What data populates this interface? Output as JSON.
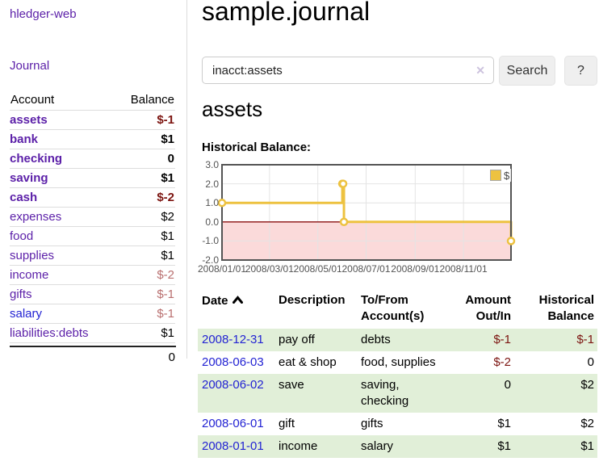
{
  "app": {
    "title": "hledger-web"
  },
  "sidebar": {
    "journal_link": "Journal",
    "accounts_table": {
      "headers": {
        "account": "Account",
        "balance": "Balance"
      },
      "rows": [
        {
          "name": "assets",
          "depth": 1,
          "bold": true,
          "balance": "$-1",
          "tone": "neg-strong"
        },
        {
          "name": "bank",
          "depth": 2,
          "bold": true,
          "balance": "$1",
          "tone": ""
        },
        {
          "name": "checking",
          "depth": 3,
          "bold": true,
          "balance": "0",
          "tone": ""
        },
        {
          "name": "saving",
          "depth": 3,
          "bold": true,
          "balance": "$1",
          "tone": ""
        },
        {
          "name": "cash",
          "depth": 2,
          "bold": true,
          "balance": "$-2",
          "tone": "neg-strong"
        },
        {
          "name": "expenses",
          "depth": 1,
          "bold": false,
          "balance": "$2",
          "tone": ""
        },
        {
          "name": "food",
          "depth": 2,
          "bold": false,
          "balance": "$1",
          "tone": ""
        },
        {
          "name": "supplies",
          "depth": 2,
          "bold": false,
          "balance": "$1",
          "tone": ""
        },
        {
          "name": "income",
          "depth": 1,
          "bold": false,
          "balance": "$-2",
          "tone": "neg-soft"
        },
        {
          "name": "gifts",
          "depth": 2,
          "bold": false,
          "balance": "$-1",
          "tone": "neg-soft"
        },
        {
          "name": "salary",
          "depth": 2,
          "bold": false,
          "balance": "$-1",
          "tone": "neg-soft",
          "unvisited": true
        },
        {
          "name": "liabilities:debts",
          "depth": 1,
          "bold": false,
          "balance": "$1",
          "tone": ""
        }
      ],
      "total": "0"
    }
  },
  "main": {
    "title": "sample.journal",
    "search": {
      "value": "inacct:assets",
      "clear_icon": "✕",
      "button": "Search",
      "help_button": "?"
    },
    "account_heading": "assets",
    "chart_label": "Historical Balance:"
  },
  "chart_data": {
    "type": "line",
    "steps": true,
    "title": "Historical Balance",
    "series": [
      {
        "name": "$",
        "color": "#edc240",
        "points": [
          [
            "2008-01-01",
            1
          ],
          [
            "2008-06-01",
            2
          ],
          [
            "2008-06-02",
            2
          ],
          [
            "2008-06-03",
            0
          ],
          [
            "2008-12-31",
            -1
          ]
        ]
      }
    ],
    "x_range": [
      "2008-01-01",
      "2008-12-31"
    ],
    "x_tick_dates": [
      "2008-01-01",
      "2008-03-01",
      "2008-05-01",
      "2008-07-01",
      "2008-09-01",
      "2008-11-01"
    ],
    "x_tick_labels": [
      "2008/01/01",
      "2008/03/01",
      "2008/05/01",
      "2008/07/01",
      "2008/09/01",
      "2008/11/01"
    ],
    "y_ticks": [
      "3.0",
      "2.0",
      "1.0",
      "0.0",
      "-1.0",
      "-2.0"
    ],
    "ylim": [
      -2,
      3
    ],
    "grid": true,
    "legend": {
      "label": "$",
      "position": "top-right"
    },
    "negative_region_fill": "#fbdada",
    "zero_line_color": "#8b1010",
    "grid_color": "#e4e4e4",
    "border_color": "#545454"
  },
  "register": {
    "headers": {
      "date": "Date",
      "description": "Description",
      "accounts": "To/From Account(s)",
      "amount": "Amount Out/In",
      "balance": "Historical Balance"
    },
    "sort_icon": "chevron-up",
    "rows": [
      {
        "date": "2008-12-31",
        "description": "pay off",
        "accounts": "debts",
        "amount": "$-1",
        "balance": "$-1"
      },
      {
        "date": "2008-06-03",
        "description": "eat & shop",
        "accounts": "food, supplies",
        "amount": "$-2",
        "balance": "0"
      },
      {
        "date": "2008-06-02",
        "description": "save",
        "accounts": "saving, checking",
        "amount": "0",
        "balance": "$2"
      },
      {
        "date": "2008-06-01",
        "description": "gift",
        "accounts": "gifts",
        "amount": "$1",
        "balance": "$2"
      },
      {
        "date": "2008-01-01",
        "description": "income",
        "accounts": "salary",
        "amount": "$1",
        "balance": "$1"
      }
    ]
  },
  "colors": {
    "link-purple": "#5b1fa8",
    "link-blue": "#2323d3",
    "neg-strong": "#7c1410",
    "neg-soft": "#b96f6f",
    "row-stripe": "#e1efd8",
    "series-gold": "#edc240"
  }
}
